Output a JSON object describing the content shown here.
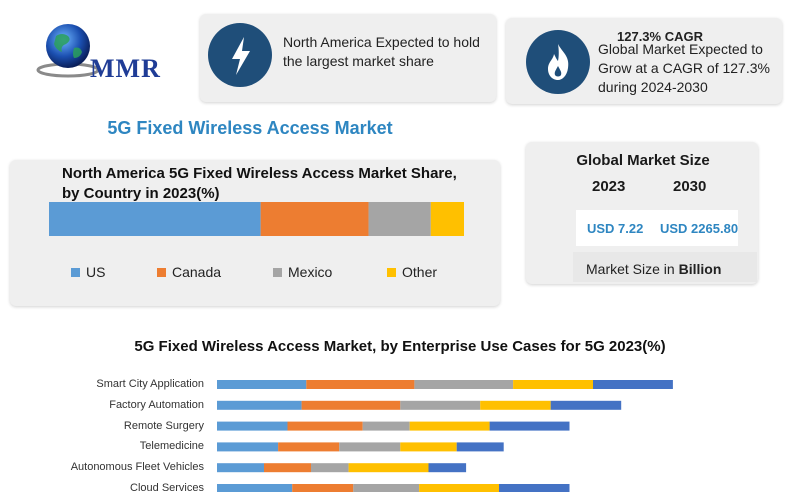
{
  "logo": {
    "text": "MMR"
  },
  "info_cards": [
    {
      "icon": "lightning-icon",
      "text_lines": [
        "North America Expected to hold",
        "the largest market share"
      ]
    },
    {
      "icon": "flame-icon",
      "heading": "127.3% CAGR",
      "text_lines": [
        "Global Market Expected to",
        "Grow at a CAGR of 127.3%",
        "during 2024-2030"
      ]
    }
  ],
  "main_title": "5G Fixed Wireless Access Market",
  "share_chart": {
    "title_lines": [
      "North America 5G Fixed Wireless Access Market Share,",
      "by Country in 2023(%)"
    ]
  },
  "global_market": {
    "title": "Global Market Size",
    "year_2023": "2023",
    "year_2030": "2030",
    "value_2023": "USD 7.22",
    "value_2030": "USD 2265.80",
    "note_prefix": "Market Size in ",
    "note_unit": "Billion"
  },
  "enterprise_chart": {
    "title": "5G Fixed Wireless Access Market, by Enterprise Use Cases for 5G 2023(%)"
  },
  "colors": {
    "blue": "#5b9bd5",
    "orange": "#ed7d31",
    "gray": "#a5a5a5",
    "yellow": "#ffc000",
    "dark_blue": "#4472c4",
    "navy": "#1f4e79",
    "accent": "#2e86c1"
  },
  "chart_data": [
    {
      "type": "bar",
      "orientation": "horizontal-stacked-100",
      "title": "North America 5G Fixed Wireless Access Market Share, by Country in 2023(%)",
      "series": [
        {
          "name": "US",
          "values": [
            51
          ],
          "color": "#5b9bd5"
        },
        {
          "name": "Canada",
          "values": [
            26
          ],
          "color": "#ed7d31"
        },
        {
          "name": "Mexico",
          "values": [
            15
          ],
          "color": "#a5a5a5"
        },
        {
          "name": "Other",
          "values": [
            8
          ],
          "color": "#ffc000"
        }
      ],
      "legend": "bottom"
    },
    {
      "type": "bar",
      "orientation": "horizontal-stacked",
      "title": "5G Fixed Wireless Access Market, by Enterprise Use Cases for 5G 2023(%)",
      "categories": [
        "Smart City Application",
        "Factory Automation",
        "Remote Surgery",
        "Telemedicine",
        "Autonomous Fleet Vehicles",
        "Cloud Services"
      ],
      "series": [
        {
          "values": [
            19,
            18,
            15,
            13,
            10,
            16
          ],
          "color": "#5b9bd5"
        },
        {
          "values": [
            23,
            21,
            16,
            13,
            10,
            13
          ],
          "color": "#ed7d31"
        },
        {
          "values": [
            21,
            17,
            10,
            13,
            8,
            14
          ],
          "color": "#a5a5a5"
        },
        {
          "values": [
            17,
            15,
            17,
            12,
            17,
            17
          ],
          "color": "#ffc000"
        },
        {
          "values": [
            17,
            15,
            17,
            10,
            8,
            15
          ],
          "color": "#4472c4"
        }
      ],
      "xlim": [
        0,
        100
      ],
      "grid": false
    }
  ]
}
